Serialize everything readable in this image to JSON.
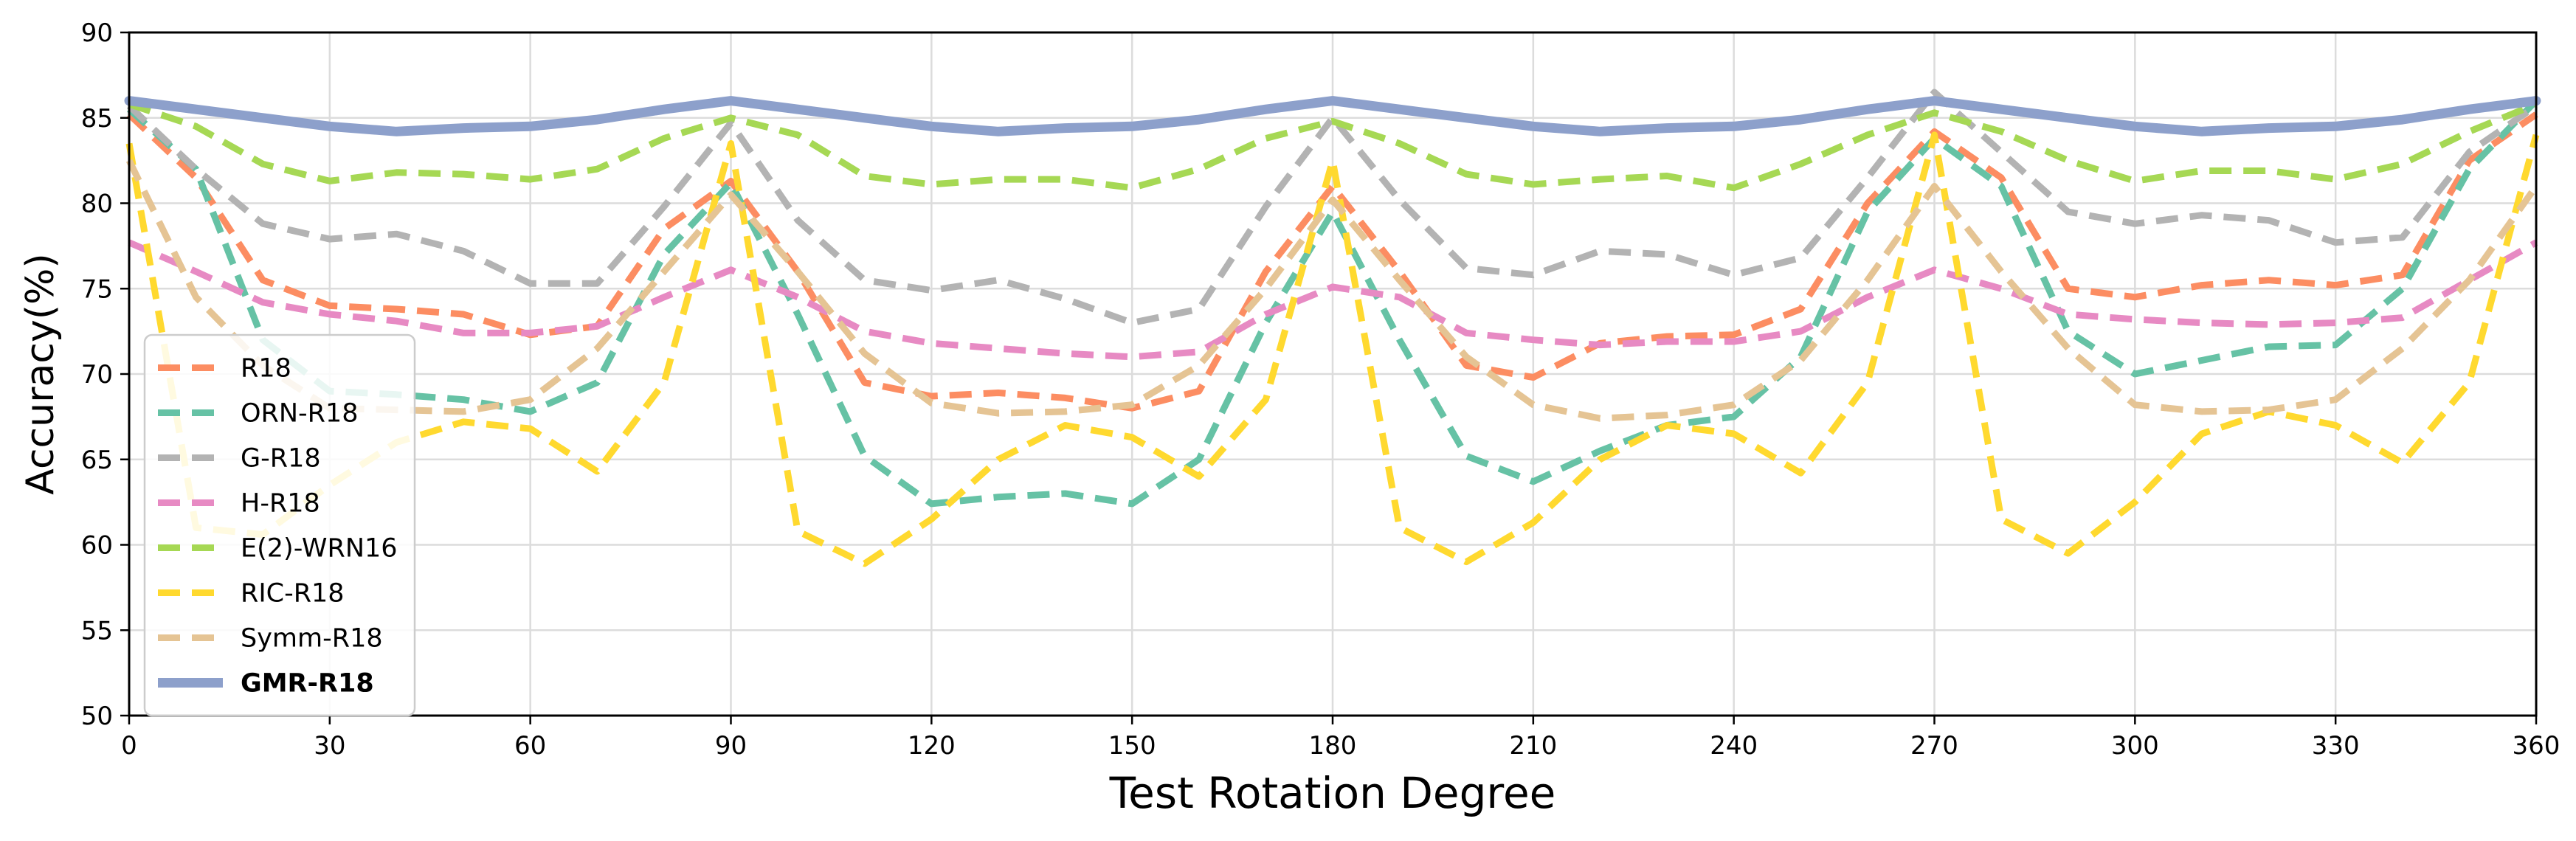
{
  "chart_data": {
    "type": "line",
    "title": "",
    "xlabel": "Test Rotation Degree",
    "ylabel": "Accuracy(%)",
    "xlim": [
      0,
      360
    ],
    "ylim": [
      50,
      90
    ],
    "xticks": [
      0,
      30,
      60,
      90,
      120,
      150,
      180,
      210,
      240,
      270,
      300,
      330,
      360
    ],
    "yticks": [
      50,
      55,
      60,
      65,
      70,
      75,
      80,
      85,
      90
    ],
    "grid": true,
    "legend_position": "lower-left",
    "x": [
      0,
      10,
      20,
      30,
      40,
      50,
      60,
      70,
      80,
      90,
      100,
      110,
      120,
      130,
      140,
      150,
      160,
      170,
      180,
      190,
      200,
      210,
      220,
      230,
      240,
      250,
      260,
      270,
      280,
      290,
      300,
      310,
      320,
      330,
      340,
      350,
      360
    ],
    "series": [
      {
        "name": "R18",
        "color": "#fc8d62",
        "style": "dashed",
        "bold": false,
        "values": [
          85.2,
          81.5,
          75.5,
          74.0,
          73.8,
          73.5,
          72.3,
          72.8,
          78.5,
          81.3,
          76.0,
          69.5,
          68.7,
          68.9,
          68.6,
          68.0,
          69.0,
          76.0,
          81.0,
          76.0,
          70.5,
          69.8,
          71.8,
          72.2,
          72.3,
          73.8,
          80.0,
          84.2,
          81.5,
          75.0,
          74.5,
          75.2,
          75.5,
          75.2,
          75.8,
          82.5,
          85.2
        ]
      },
      {
        "name": "ORN-R18",
        "color": "#66c2a5",
        "style": "dashed",
        "bold": false,
        "values": [
          85.5,
          82.0,
          72.0,
          69.0,
          68.8,
          68.5,
          67.8,
          69.5,
          77.0,
          81.2,
          73.5,
          65.2,
          62.4,
          62.8,
          63.0,
          62.4,
          65.0,
          73.0,
          79.5,
          72.0,
          65.2,
          63.7,
          65.5,
          67.0,
          67.5,
          71.0,
          79.5,
          83.8,
          81.0,
          72.5,
          70.0,
          70.8,
          71.6,
          71.7,
          75.0,
          82.0,
          86.0
        ]
      },
      {
        "name": "G-R18",
        "color": "#b3b3b3",
        "style": "dashed",
        "bold": false,
        "values": [
          85.7,
          82.0,
          78.8,
          77.9,
          78.2,
          77.2,
          75.3,
          75.3,
          79.8,
          84.7,
          79.0,
          75.5,
          74.9,
          75.5,
          74.4,
          73.0,
          73.8,
          79.8,
          85.0,
          80.2,
          76.2,
          75.8,
          77.2,
          77.0,
          75.8,
          76.8,
          81.5,
          86.5,
          83.0,
          79.5,
          78.8,
          79.3,
          79.0,
          77.7,
          78.0,
          83.0,
          85.7
        ]
      },
      {
        "name": "H-R18",
        "color": "#e78ac3",
        "style": "dashed",
        "bold": false,
        "values": [
          77.7,
          76.0,
          74.2,
          73.5,
          73.1,
          72.4,
          72.4,
          72.8,
          74.5,
          76.1,
          74.5,
          72.5,
          71.8,
          71.5,
          71.2,
          71.0,
          71.3,
          73.5,
          75.1,
          74.5,
          72.4,
          72.0,
          71.7,
          71.9,
          71.9,
          72.5,
          74.5,
          76.1,
          75.0,
          73.5,
          73.2,
          73.0,
          72.9,
          73.0,
          73.3,
          75.5,
          77.7
        ]
      },
      {
        "name": "E(2)-WRN16",
        "color": "#a6d854",
        "style": "dashed",
        "bold": false,
        "values": [
          85.8,
          84.5,
          82.3,
          81.3,
          81.8,
          81.7,
          81.4,
          82.0,
          83.8,
          85.0,
          84.0,
          81.6,
          81.1,
          81.4,
          81.4,
          80.9,
          82.0,
          83.8,
          84.8,
          83.5,
          81.7,
          81.1,
          81.4,
          81.6,
          80.9,
          82.3,
          84.0,
          85.3,
          84.2,
          82.5,
          81.3,
          81.9,
          81.9,
          81.4,
          82.3,
          84.2,
          85.8
        ]
      },
      {
        "name": "RIC-R18",
        "color": "#ffd92f",
        "style": "dashed",
        "bold": false,
        "values": [
          83.5,
          61.0,
          60.6,
          63.5,
          66.0,
          67.2,
          66.8,
          64.3,
          69.5,
          83.5,
          60.8,
          58.9,
          61.5,
          65.0,
          67.0,
          66.3,
          64.0,
          68.5,
          82.5,
          61.0,
          59.0,
          61.3,
          65.0,
          67.0,
          66.5,
          64.2,
          69.5,
          84.0,
          61.5,
          59.5,
          62.5,
          66.5,
          67.8,
          67.0,
          64.8,
          69.5,
          84.0
        ]
      },
      {
        "name": "Symm-R18",
        "color": "#e5c494",
        "style": "dashed",
        "bold": false,
        "values": [
          82.5,
          74.5,
          70.5,
          68.0,
          67.9,
          67.8,
          68.5,
          71.5,
          76.0,
          80.5,
          76.0,
          71.2,
          68.3,
          67.7,
          67.8,
          68.2,
          70.5,
          75.0,
          80.2,
          75.5,
          71.0,
          68.2,
          67.4,
          67.6,
          68.2,
          70.8,
          75.5,
          81.0,
          76.0,
          71.5,
          68.2,
          67.8,
          67.9,
          68.5,
          71.5,
          75.5,
          81.0
        ]
      },
      {
        "name": "GMR-R18",
        "color": "#8da0cb",
        "style": "solid",
        "bold": true,
        "values": [
          86.0,
          85.5,
          85.0,
          84.5,
          84.2,
          84.4,
          84.5,
          84.9,
          85.5,
          86.0,
          85.5,
          85.0,
          84.5,
          84.2,
          84.4,
          84.5,
          84.9,
          85.5,
          86.0,
          85.5,
          85.0,
          84.5,
          84.2,
          84.4,
          84.5,
          84.9,
          85.5,
          86.0,
          85.5,
          85.0,
          84.5,
          84.2,
          84.4,
          84.5,
          84.9,
          85.5,
          86.0
        ]
      }
    ]
  }
}
